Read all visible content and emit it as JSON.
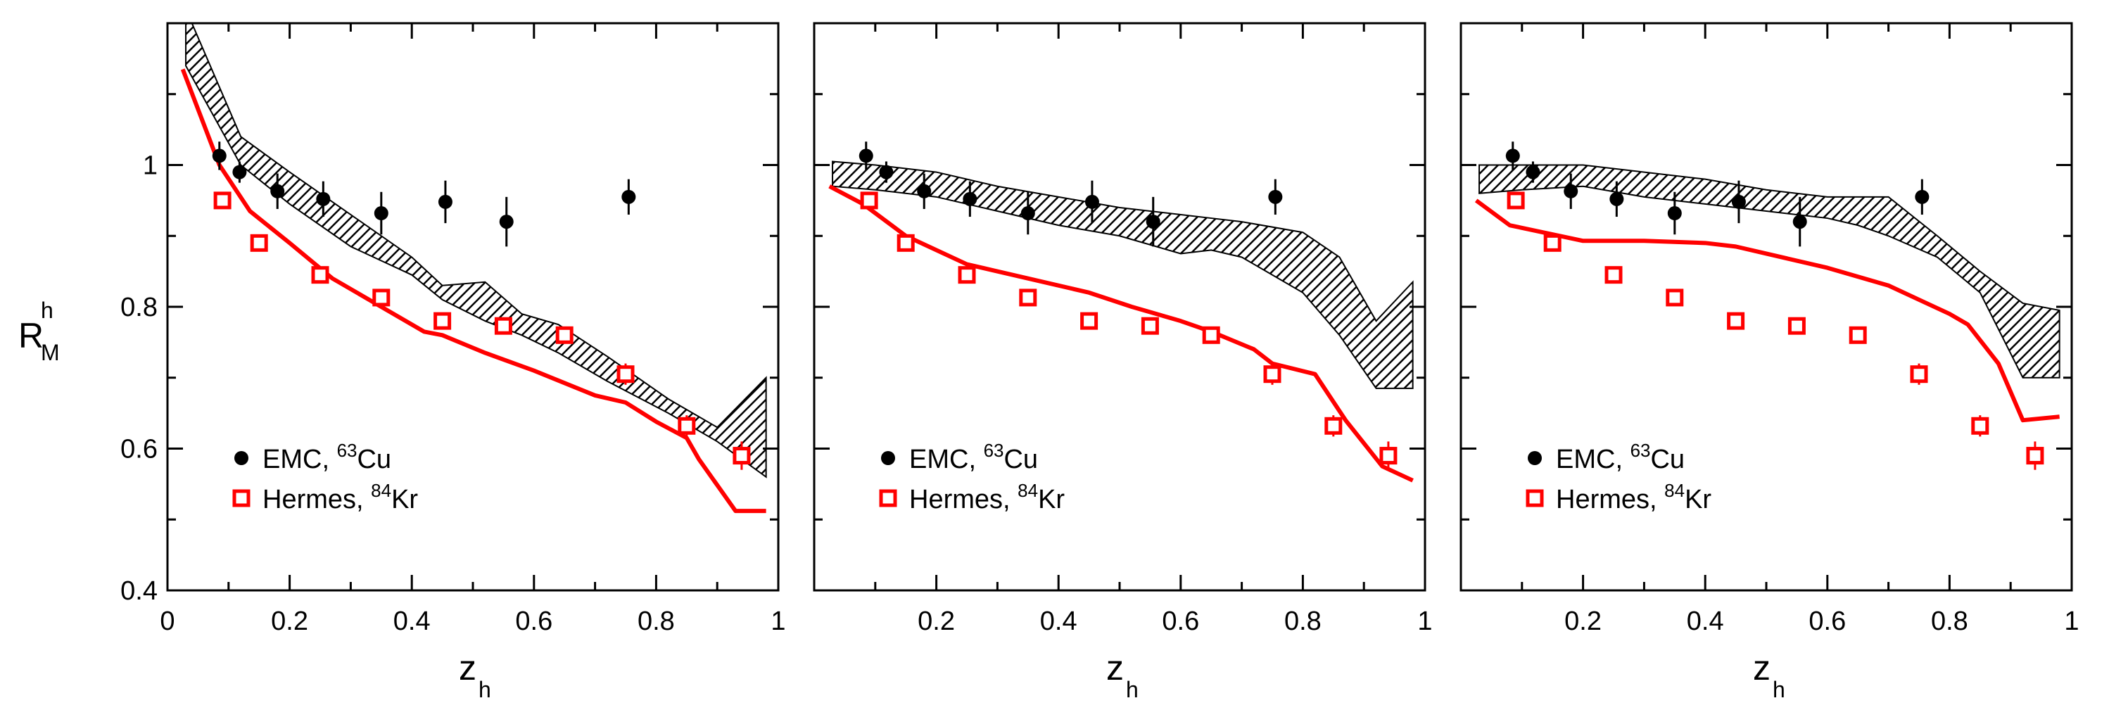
{
  "colors": {
    "axis": "#000000",
    "emc": "#000000",
    "hermes": "#ff0000",
    "model_line": "#ff0000",
    "band_hatch": "#000000"
  },
  "ylabel": {
    "base": "R",
    "sup": "h",
    "sub": "M"
  },
  "xlabel": {
    "base": "z",
    "sub": "h"
  },
  "legend": {
    "emc": {
      "prefix": "EMC, ",
      "sup": "63",
      "suffix": "Cu"
    },
    "hermes": {
      "prefix": "Hermes, ",
      "sup": "84",
      "suffix": "Kr"
    }
  },
  "chart_data": [
    {
      "type": "scatter",
      "xlim": [
        0,
        1
      ],
      "ylim": [
        0.4,
        1.2
      ],
      "xticks": [
        0,
        0.2,
        0.4,
        0.6,
        0.8,
        1
      ],
      "xticklabels": [
        "0",
        "0.2",
        "0.4",
        "0.6",
        "0.8",
        "1"
      ],
      "yticks": [
        0.4,
        0.6,
        0.8,
        1.0
      ],
      "yticklabels": [
        "0.4",
        "0.6",
        "0.8",
        "1"
      ],
      "legend_position": "bottom-left",
      "series": [
        {
          "name": "EMC, 63Cu",
          "marker": "filled-circle",
          "points": [
            {
              "x": 0.085,
              "y": 1.013,
              "err": 0.02
            },
            {
              "x": 0.118,
              "y": 0.99,
              "err": 0.015
            },
            {
              "x": 0.18,
              "y": 0.963,
              "err": 0.025
            },
            {
              "x": 0.255,
              "y": 0.952,
              "err": 0.025
            },
            {
              "x": 0.35,
              "y": 0.932,
              "err": 0.03
            },
            {
              "x": 0.455,
              "y": 0.948,
              "err": 0.03
            },
            {
              "x": 0.555,
              "y": 0.92,
              "err": 0.035
            },
            {
              "x": 0.755,
              "y": 0.955,
              "err": 0.025
            }
          ]
        },
        {
          "name": "Hermes, 84Kr",
          "marker": "open-square",
          "points": [
            {
              "x": 0.09,
              "y": 0.95,
              "err": 0.0
            },
            {
              "x": 0.15,
              "y": 0.89,
              "err": 0.0
            },
            {
              "x": 0.25,
              "y": 0.845,
              "err": 0.005
            },
            {
              "x": 0.35,
              "y": 0.813,
              "err": 0.008
            },
            {
              "x": 0.45,
              "y": 0.78,
              "err": 0.008
            },
            {
              "x": 0.55,
              "y": 0.773,
              "err": 0.01
            },
            {
              "x": 0.65,
              "y": 0.76,
              "err": 0.012
            },
            {
              "x": 0.75,
              "y": 0.705,
              "err": 0.015
            },
            {
              "x": 0.85,
              "y": 0.632,
              "err": 0.015
            },
            {
              "x": 0.94,
              "y": 0.59,
              "err": 0.02
            }
          ]
        },
        {
          "type": "line",
          "x": [
            0.025,
            0.085,
            0.135,
            0.2,
            0.27,
            0.35,
            0.42,
            0.45,
            0.52,
            0.6,
            0.7,
            0.75,
            0.8,
            0.85,
            0.87,
            0.93,
            0.98
          ],
          "y": [
            1.135,
            1.0,
            0.935,
            0.89,
            0.84,
            0.8,
            0.765,
            0.76,
            0.735,
            0.71,
            0.675,
            0.665,
            0.638,
            0.615,
            0.585,
            0.512,
            0.512
          ]
        },
        {
          "type": "band",
          "x": [
            0.03,
            0.12,
            0.2,
            0.3,
            0.4,
            0.45,
            0.52,
            0.58,
            0.64,
            0.72,
            0.82,
            0.9,
            0.98
          ],
          "upper": [
            1.22,
            1.04,
            0.99,
            0.93,
            0.87,
            0.83,
            0.835,
            0.79,
            0.775,
            0.73,
            0.67,
            0.63,
            0.7
          ],
          "lower": [
            1.14,
            1.0,
            0.945,
            0.885,
            0.845,
            0.81,
            0.78,
            0.76,
            0.735,
            0.695,
            0.65,
            0.61,
            0.56
          ]
        }
      ]
    },
    {
      "type": "scatter",
      "xlim": [
        0,
        1
      ],
      "ylim": [
        0.4,
        1.2
      ],
      "xticks": [
        0.2,
        0.4,
        0.6,
        0.8,
        1
      ],
      "xticklabels": [
        "0.2",
        "0.4",
        "0.6",
        "0.8",
        "1"
      ],
      "yticks": [
        0.4,
        0.6,
        0.8,
        1.0
      ],
      "yticklabels": [],
      "legend_position": "bottom-left",
      "series": [
        {
          "name": "EMC, 63Cu",
          "marker": "filled-circle",
          "points": [
            {
              "x": 0.085,
              "y": 1.013,
              "err": 0.02
            },
            {
              "x": 0.118,
              "y": 0.99,
              "err": 0.015
            },
            {
              "x": 0.18,
              "y": 0.963,
              "err": 0.025
            },
            {
              "x": 0.255,
              "y": 0.952,
              "err": 0.025
            },
            {
              "x": 0.35,
              "y": 0.932,
              "err": 0.03
            },
            {
              "x": 0.455,
              "y": 0.948,
              "err": 0.03
            },
            {
              "x": 0.555,
              "y": 0.92,
              "err": 0.035
            },
            {
              "x": 0.755,
              "y": 0.955,
              "err": 0.025
            }
          ]
        },
        {
          "name": "Hermes, 84Kr",
          "marker": "open-square",
          "points": [
            {
              "x": 0.09,
              "y": 0.95,
              "err": 0.0
            },
            {
              "x": 0.15,
              "y": 0.89,
              "err": 0.0
            },
            {
              "x": 0.25,
              "y": 0.845,
              "err": 0.005
            },
            {
              "x": 0.35,
              "y": 0.813,
              "err": 0.008
            },
            {
              "x": 0.45,
              "y": 0.78,
              "err": 0.008
            },
            {
              "x": 0.55,
              "y": 0.773,
              "err": 0.01
            },
            {
              "x": 0.65,
              "y": 0.76,
              "err": 0.012
            },
            {
              "x": 0.75,
              "y": 0.705,
              "err": 0.015
            },
            {
              "x": 0.85,
              "y": 0.632,
              "err": 0.015
            },
            {
              "x": 0.94,
              "y": 0.59,
              "err": 0.02
            }
          ]
        },
        {
          "type": "line",
          "x": [
            0.025,
            0.08,
            0.15,
            0.25,
            0.35,
            0.45,
            0.52,
            0.6,
            0.65,
            0.72,
            0.75,
            0.82,
            0.87,
            0.93,
            0.98
          ],
          "y": [
            0.97,
            0.945,
            0.9,
            0.86,
            0.84,
            0.82,
            0.8,
            0.78,
            0.765,
            0.74,
            0.72,
            0.705,
            0.64,
            0.575,
            0.555
          ]
        },
        {
          "type": "band",
          "x": [
            0.03,
            0.1,
            0.2,
            0.3,
            0.4,
            0.5,
            0.6,
            0.65,
            0.7,
            0.8,
            0.86,
            0.92,
            0.98
          ],
          "upper": [
            1.005,
            1.0,
            0.99,
            0.97,
            0.955,
            0.94,
            0.93,
            0.925,
            0.92,
            0.905,
            0.87,
            0.78,
            0.835
          ],
          "lower": [
            0.97,
            0.965,
            0.955,
            0.935,
            0.915,
            0.9,
            0.875,
            0.88,
            0.87,
            0.82,
            0.76,
            0.685,
            0.685
          ]
        }
      ]
    },
    {
      "type": "scatter",
      "xlim": [
        0,
        1
      ],
      "ylim": [
        0.4,
        1.2
      ],
      "xticks": [
        0.2,
        0.4,
        0.6,
        0.8,
        1
      ],
      "xticklabels": [
        "0.2",
        "0.4",
        "0.6",
        "0.8",
        "1"
      ],
      "yticks": [
        0.4,
        0.6,
        0.8,
        1.0
      ],
      "yticklabels": [],
      "legend_position": "bottom-left",
      "series": [
        {
          "name": "EMC, 63Cu",
          "marker": "filled-circle",
          "points": [
            {
              "x": 0.085,
              "y": 1.013,
              "err": 0.02
            },
            {
              "x": 0.118,
              "y": 0.99,
              "err": 0.015
            },
            {
              "x": 0.18,
              "y": 0.963,
              "err": 0.025
            },
            {
              "x": 0.255,
              "y": 0.952,
              "err": 0.025
            },
            {
              "x": 0.35,
              "y": 0.932,
              "err": 0.03
            },
            {
              "x": 0.455,
              "y": 0.948,
              "err": 0.03
            },
            {
              "x": 0.555,
              "y": 0.92,
              "err": 0.035
            },
            {
              "x": 0.755,
              "y": 0.955,
              "err": 0.025
            }
          ]
        },
        {
          "name": "Hermes, 84Kr",
          "marker": "open-square",
          "points": [
            {
              "x": 0.09,
              "y": 0.95,
              "err": 0.0
            },
            {
              "x": 0.15,
              "y": 0.89,
              "err": 0.0
            },
            {
              "x": 0.25,
              "y": 0.845,
              "err": 0.005
            },
            {
              "x": 0.35,
              "y": 0.813,
              "err": 0.008
            },
            {
              "x": 0.45,
              "y": 0.78,
              "err": 0.008
            },
            {
              "x": 0.55,
              "y": 0.773,
              "err": 0.01
            },
            {
              "x": 0.65,
              "y": 0.76,
              "err": 0.012
            },
            {
              "x": 0.75,
              "y": 0.705,
              "err": 0.015
            },
            {
              "x": 0.85,
              "y": 0.632,
              "err": 0.015
            },
            {
              "x": 0.94,
              "y": 0.59,
              "err": 0.02
            }
          ]
        },
        {
          "type": "line",
          "x": [
            0.025,
            0.08,
            0.2,
            0.3,
            0.4,
            0.45,
            0.5,
            0.6,
            0.7,
            0.75,
            0.8,
            0.83,
            0.88,
            0.92,
            0.98
          ],
          "y": [
            0.95,
            0.915,
            0.893,
            0.893,
            0.89,
            0.885,
            0.875,
            0.855,
            0.83,
            0.81,
            0.79,
            0.775,
            0.72,
            0.64,
            0.645
          ]
        },
        {
          "type": "band",
          "x": [
            0.03,
            0.1,
            0.2,
            0.3,
            0.4,
            0.5,
            0.6,
            0.65,
            0.7,
            0.78,
            0.85,
            0.92,
            0.98
          ],
          "upper": [
            1.0,
            1.0,
            1.0,
            0.99,
            0.98,
            0.965,
            0.955,
            0.955,
            0.955,
            0.9,
            0.85,
            0.805,
            0.795
          ],
          "lower": [
            0.96,
            0.965,
            0.97,
            0.955,
            0.945,
            0.935,
            0.925,
            0.915,
            0.9,
            0.87,
            0.82,
            0.7,
            0.7
          ]
        }
      ]
    }
  ]
}
